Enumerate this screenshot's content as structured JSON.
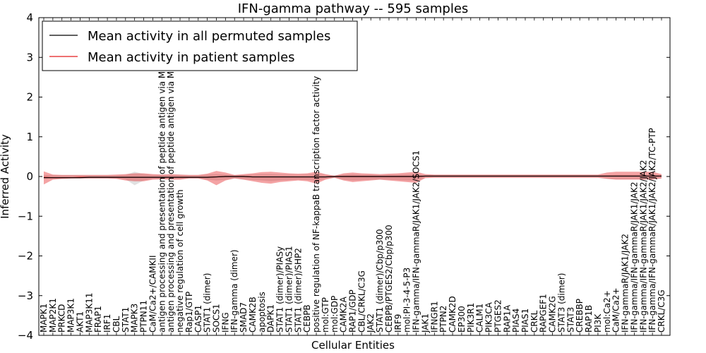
{
  "chart_data": {
    "type": "line",
    "title": "IFN-gamma pathway -- 595 samples",
    "xlabel": "Cellular Entities",
    "ylabel": "Inferred Activity",
    "ylim": [
      -4,
      4
    ],
    "yticks": [
      "−4",
      "−3",
      "−2",
      "−1",
      "0",
      "1",
      "2",
      "3",
      "4"
    ],
    "legend": {
      "position": "top-left",
      "entries": [
        {
          "name": "Mean activity in all permuted samples",
          "color": "#000000"
        },
        {
          "name": "Mean activity in patient samples",
          "color": "#e31a1c"
        }
      ]
    },
    "categories": [
      "MAPK1",
      "MAP2K1",
      "PRKCD",
      "MAP3K1",
      "AKT1",
      "MAP3K11",
      "FRAP1",
      "IRF1",
      "CBL",
      "STAT1",
      "MAPK3",
      "PTPN11",
      "CaM/Ca2+/CAMKII",
      "antigen processing and presentation of peptide antigen via MHC class I",
      "antigen processing and presentation of peptide antigen via MHC class II",
      "negative regulation of cell growth",
      "Rap1/GTP",
      "CASP1",
      "STAT1 (dimer)",
      "SOCS1",
      "IFNG",
      "IFN-gamma (dimer)",
      "SMAD7",
      "CAMK2B",
      "apoptosis",
      "DAPK1",
      "STAT1 (dimer)/PIASy",
      "STAT1 (dimer)/PIAS1",
      "STAT1 (dimer)/SHP2",
      "CEBPB",
      "positive regulation of NF-kappaB transcription factor activity",
      "mol:GTP",
      "mol:GDP",
      "CAMK2A",
      "RAP1/GDP",
      "CBL/CRKL/C3G",
      "JAK2",
      "STAT1 (dimer)/Cbp/p300",
      "CEBPB/PTGES2/Cbp/p300",
      "IRF9",
      "mol:PI-3-4-5-P3",
      "IFN-gamma/IFN-gammaR/JAK1/JAK2/SOCS1",
      "JAK1",
      "IFNGR1",
      "PTPN2",
      "CAMK2D",
      "EP300",
      "PIK3R1",
      "CALM1",
      "PIK3CA",
      "PTGES2",
      "RAP1A",
      "PIAS4",
      "PIAS1",
      "CRKL",
      "RAPGEF1",
      "CAMK2G",
      "STAT3 (dimer)",
      "STAT3",
      "CREBBP",
      "RAP1B",
      "PI3K",
      "mol:Ca2+",
      "CaM/Ca2+",
      "IFN-gammaR/JAK1/JAK2",
      "IFN-gamma/IFN-gammaR/JAK1/JAK2",
      "IFN-gamma/IFN-gammaR/JAK1/JAK2/JAK2",
      "IFN-gamma/IFN-gammaR/JAK1/JAK2/JAK2/TC-PTP",
      "CRKL/C3G"
    ],
    "series": [
      {
        "name": "Mean activity in all permuted samples",
        "color": "#000000",
        "values": [
          -0.03,
          -0.03,
          -0.03,
          -0.03,
          -0.03,
          -0.02,
          -0.02,
          -0.02,
          -0.02,
          -0.02,
          -0.02,
          -0.02,
          -0.02,
          -0.02,
          -0.02,
          -0.02,
          -0.02,
          -0.02,
          -0.02,
          -0.01,
          0.0,
          0.0,
          0.0,
          -0.01,
          -0.01,
          -0.01,
          -0.01,
          -0.01,
          -0.01,
          -0.01,
          -0.01,
          -0.01,
          0.0,
          0.0,
          0.0,
          0.0,
          0.0,
          0.0,
          0.0,
          0.0,
          0.0,
          0.0,
          0.01,
          0.01,
          0.01,
          0.01,
          0.01,
          0.01,
          0.01,
          0.01,
          0.01,
          0.01,
          0.01,
          0.01,
          0.01,
          0.01,
          0.01,
          0.01,
          0.01,
          0.01,
          0.01,
          0.01,
          0.01,
          0.01,
          0.01,
          0.01,
          0.01,
          0.01,
          0.01
        ]
      },
      {
        "name": "Mean activity in patient samples",
        "color": "#e31a1c",
        "values": [
          -0.02,
          -0.03,
          -0.03,
          -0.03,
          -0.02,
          -0.02,
          -0.02,
          -0.02,
          -0.02,
          -0.02,
          -0.02,
          -0.02,
          -0.02,
          -0.02,
          -0.02,
          -0.02,
          -0.02,
          -0.02,
          -0.02,
          -0.01,
          0.0,
          0.0,
          0.0,
          -0.01,
          -0.01,
          -0.01,
          -0.01,
          -0.01,
          -0.01,
          -0.01,
          -0.01,
          -0.01,
          0.0,
          0.0,
          0.0,
          0.0,
          0.0,
          0.0,
          0.0,
          0.0,
          0.0,
          0.0,
          0.01,
          0.01,
          0.01,
          0.01,
          0.01,
          0.01,
          0.01,
          0.01,
          0.01,
          0.01,
          0.01,
          0.01,
          0.01,
          0.01,
          0.01,
          0.01,
          0.01,
          0.01,
          0.01,
          0.01,
          0.01,
          0.01,
          0.01,
          0.01,
          0.01,
          0.01,
          0.01
        ]
      }
    ],
    "patient_band_upper": [
      0.13,
      0.05,
      0.04,
      0.04,
      0.04,
      0.04,
      0.04,
      0.04,
      0.05,
      0.06,
      0.08,
      0.08,
      0.06,
      0.05,
      0.06,
      0.05,
      0.04,
      0.04,
      0.07,
      0.14,
      0.1,
      0.04,
      0.06,
      0.08,
      0.11,
      0.12,
      0.1,
      0.08,
      0.07,
      0.08,
      0.12,
      0.06,
      0.02,
      0.08,
      0.1,
      0.08,
      0.07,
      0.06,
      0.07,
      0.08,
      0.1,
      0.12,
      0.06,
      0.05,
      0.05,
      0.05,
      0.05,
      0.05,
      0.05,
      0.05,
      0.05,
      0.05,
      0.05,
      0.05,
      0.05,
      0.05,
      0.05,
      0.05,
      0.05,
      0.05,
      0.05,
      0.05,
      0.1,
      0.12,
      0.12,
      0.12,
      0.12,
      0.12,
      0.06
    ],
    "patient_band_lower": [
      -0.2,
      -0.08,
      -0.06,
      -0.05,
      -0.05,
      -0.05,
      -0.05,
      -0.05,
      -0.06,
      -0.1,
      -0.12,
      -0.12,
      -0.08,
      -0.07,
      -0.08,
      -0.08,
      -0.05,
      -0.05,
      -0.1,
      -0.22,
      -0.1,
      -0.05,
      -0.08,
      -0.12,
      -0.16,
      -0.18,
      -0.14,
      -0.12,
      -0.1,
      -0.12,
      -0.18,
      -0.08,
      -0.03,
      -0.1,
      -0.14,
      -0.12,
      -0.1,
      -0.08,
      -0.1,
      -0.12,
      -0.14,
      -0.16,
      -0.04,
      -0.03,
      -0.03,
      -0.03,
      -0.03,
      -0.03,
      -0.03,
      -0.03,
      -0.03,
      -0.03,
      -0.03,
      -0.03,
      -0.03,
      -0.03,
      -0.03,
      -0.03,
      -0.03,
      -0.03,
      -0.03,
      -0.03,
      -0.06,
      -0.08,
      -0.08,
      -0.08,
      -0.08,
      -0.08,
      -0.05
    ],
    "permuted_band_upper": [
      0.04,
      0.03,
      0.03,
      0.03,
      0.03,
      0.03,
      0.03,
      0.03,
      0.03,
      0.04,
      0.12,
      0.06,
      0.04,
      0.04,
      0.04,
      0.04,
      0.03,
      0.03,
      0.05,
      0.06,
      0.05,
      0.03,
      0.04,
      0.05,
      0.06,
      0.06,
      0.05,
      0.05,
      0.04,
      0.05,
      0.06,
      0.04,
      0.02,
      0.05,
      0.06,
      0.05,
      0.05,
      0.04,
      0.05,
      0.05,
      0.06,
      0.06,
      0.03,
      0.03,
      0.03,
      0.03,
      0.03,
      0.03,
      0.03,
      0.03,
      0.03,
      0.03,
      0.03,
      0.03,
      0.03,
      0.03,
      0.03,
      0.03,
      0.03,
      0.03,
      0.03,
      0.03,
      0.04,
      0.05,
      0.05,
      0.05,
      0.05,
      0.05,
      0.04
    ],
    "permuted_band_lower": [
      -0.06,
      -0.05,
      -0.05,
      -0.05,
      -0.05,
      -0.05,
      -0.05,
      -0.05,
      -0.05,
      -0.07,
      -0.22,
      -0.1,
      -0.06,
      -0.06,
      -0.06,
      -0.06,
      -0.05,
      -0.05,
      -0.08,
      -0.1,
      -0.08,
      -0.05,
      -0.07,
      -0.09,
      -0.1,
      -0.12,
      -0.1,
      -0.09,
      -0.08,
      -0.09,
      -0.1,
      -0.06,
      -0.03,
      -0.08,
      -0.1,
      -0.09,
      -0.08,
      -0.07,
      -0.08,
      -0.09,
      -0.1,
      -0.1,
      -0.03,
      -0.03,
      -0.03,
      -0.03,
      -0.03,
      -0.03,
      -0.03,
      -0.03,
      -0.03,
      -0.03,
      -0.03,
      -0.03,
      -0.03,
      -0.03,
      -0.03,
      -0.03,
      -0.03,
      -0.03,
      -0.03,
      -0.03,
      -0.05,
      -0.06,
      -0.06,
      -0.06,
      -0.06,
      -0.06,
      -0.04
    ]
  }
}
